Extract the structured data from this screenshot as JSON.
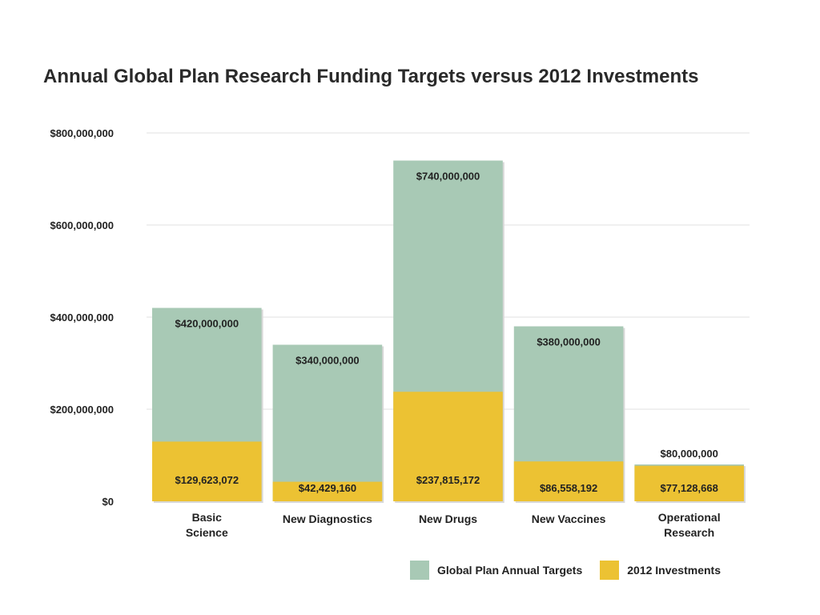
{
  "chart_data": {
    "type": "bar",
    "stacked": "overlay",
    "title": "Annual Global Plan Research Funding Targets versus 2012 Investments",
    "xlabel": "",
    "ylabel": "",
    "ylim": [
      0,
      800000000
    ],
    "y_ticks": [
      0,
      200000000,
      400000000,
      600000000,
      800000000
    ],
    "y_tick_labels": [
      "$0",
      "$200,000,000",
      "$400,000,000",
      "$600,000,000",
      "$800,000,000"
    ],
    "grid": true,
    "legend_position": "bottom-right",
    "categories": [
      [
        "Basic",
        "Science"
      ],
      [
        "New Diagnostics"
      ],
      [
        "New Drugs"
      ],
      [
        "New Vaccines"
      ],
      [
        "Operational",
        "Research"
      ]
    ],
    "series": [
      {
        "name": "Global Plan Annual Targets",
        "color": "#a8c9b5",
        "values": [
          420000000,
          340000000,
          740000000,
          380000000,
          80000000
        ],
        "labels": [
          "$420,000,000",
          "$340,000,000",
          "$740,000,000",
          "$380,000,000",
          "$80,000,000"
        ]
      },
      {
        "name": "2012 Investments",
        "color": "#ecc233",
        "values": [
          129623072,
          42429160,
          237815172,
          86558192,
          77128668
        ],
        "labels": [
          "$129,623,072",
          "$42,429,160",
          "$237,815,172",
          "$86,558,192",
          "$77,128,668"
        ]
      }
    ]
  }
}
